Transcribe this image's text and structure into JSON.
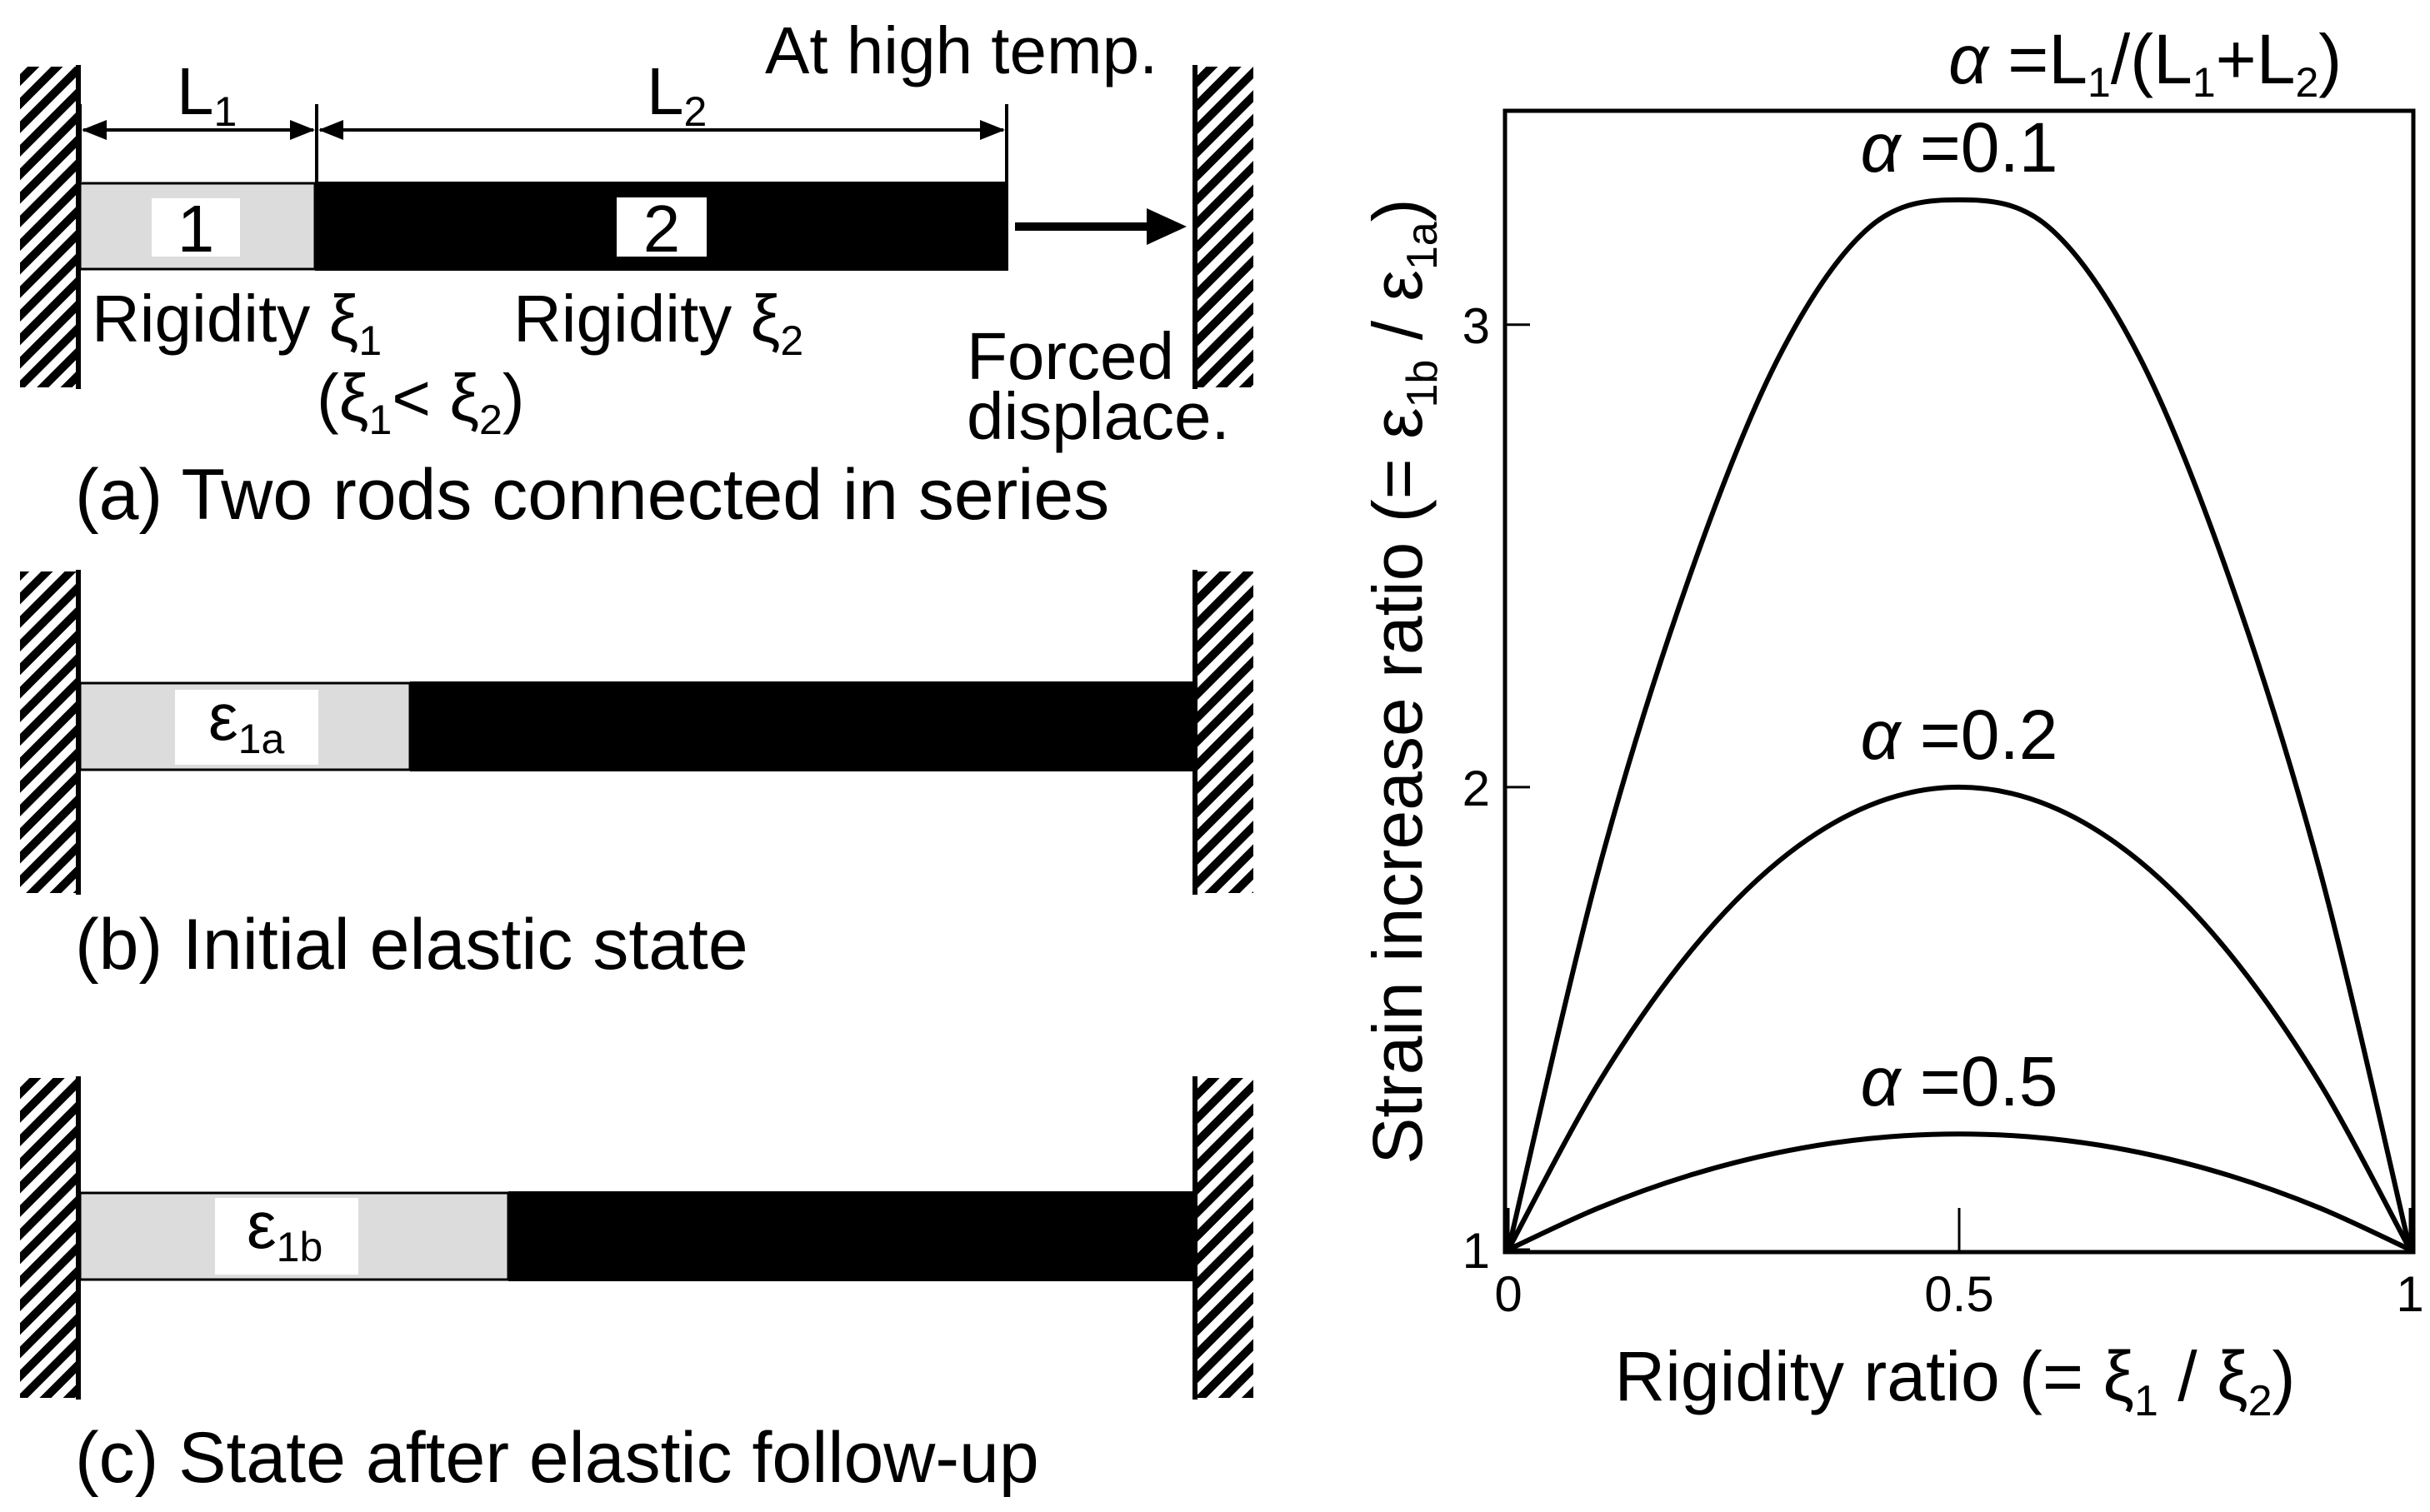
{
  "panel_a": {
    "top_right_label": "At high temp.",
    "len1_main": "L",
    "len1_sub": "1",
    "len2_main": "L",
    "len2_sub": "2",
    "rod1_num": "1",
    "rod2_num": "2",
    "rigidity1_main": "Rigidity ξ",
    "rigidity1_sub": "1",
    "rigidity2_main": "Rigidity ξ",
    "rigidity2_sub": "2",
    "cond_open": "(ξ",
    "cond_sub1": "1",
    "cond_mid": "< ξ",
    "cond_sub2": "2",
    "cond_close": ")",
    "forced_line1": "Forced",
    "forced_line2": "displace.",
    "caption": "(a) Two rods connected in series"
  },
  "panel_b": {
    "strain_main": "ε",
    "strain_sub": "1a",
    "caption": "(b) Initial elastic state"
  },
  "panel_c": {
    "strain_main": "ε",
    "strain_sub": "1b",
    "caption": "(c) State after elastic follow-up"
  },
  "colors": {
    "rod1_fill": "#dcdcdc",
    "rod2_fill": "#000000",
    "line": "#000000"
  },
  "chart_data": {
    "type": "line",
    "alpha_def_sym": "α",
    "alpha_def_rest": " =L",
    "alpha_def_sub1": "1",
    "alpha_def_mid": "/(L",
    "alpha_def_sub2": "1",
    "alpha_def_mid2": "+L",
    "alpha_def_sub3": "2",
    "alpha_def_end": ")",
    "xlabel_main": "Rigidity ratio (= ξ",
    "xlabel_sub1": "1",
    "xlabel_mid": " / ξ",
    "xlabel_sub2": "2",
    "xlabel_end": ")",
    "ylabel_main": "Strain increase ratio (= ε",
    "ylabel_sub1": "1b",
    "ylabel_mid": " / ε",
    "ylabel_sub2": "1a",
    "ylabel_end": ")",
    "xlim": [
      0,
      1
    ],
    "ylim": [
      1,
      3.45
    ],
    "x_ticks": [
      "0",
      "0.5",
      "1"
    ],
    "y_ticks": [
      "1",
      "2",
      "3"
    ],
    "series": [
      {
        "name": "α =0.1",
        "alpha": 0.1,
        "x": [
          0,
          0.1,
          0.2,
          0.3,
          0.4,
          0.5,
          0.6,
          0.7,
          0.8,
          0.9,
          1
        ],
        "y": [
          1.0,
          1.82,
          2.45,
          2.93,
          3.21,
          3.27,
          3.21,
          2.93,
          2.45,
          1.82,
          1.0
        ]
      },
      {
        "name": "α =0.2",
        "alpha": 0.2,
        "x": [
          0,
          0.1,
          0.2,
          0.3,
          0.4,
          0.5,
          0.6,
          0.7,
          0.8,
          0.9,
          1
        ],
        "y": [
          1.0,
          1.36,
          1.64,
          1.84,
          1.96,
          2.0,
          1.96,
          1.84,
          1.64,
          1.36,
          1.0
        ]
      },
      {
        "name": "α =0.5",
        "alpha": 0.5,
        "x": [
          0,
          0.1,
          0.2,
          0.3,
          0.4,
          0.5,
          0.6,
          0.7,
          0.8,
          0.9,
          1
        ],
        "y": [
          1.0,
          1.09,
          1.16,
          1.21,
          1.24,
          1.25,
          1.24,
          1.21,
          1.16,
          1.09,
          1.0
        ]
      }
    ],
    "grid": false,
    "legend": "inline labels above each curve"
  }
}
